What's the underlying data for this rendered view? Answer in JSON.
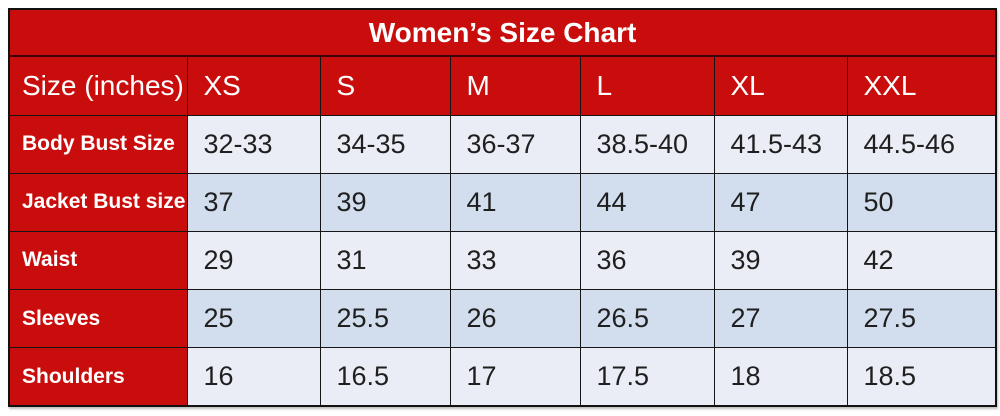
{
  "title": "Women’s Size Chart",
  "colors": {
    "red": "#c90d0d",
    "row_light": "#eaedf6",
    "row_dark": "#d2deee",
    "border": "#151515",
    "text_dark": "#1f1f1f",
    "text_light": "#ffffff"
  },
  "chart_data": {
    "type": "table",
    "title": "Women’s Size Chart",
    "columns": [
      "Size (inches)",
      "XS",
      "S",
      "M",
      "L",
      "XL",
      "XXL"
    ],
    "rows": [
      {
        "label": "Body Bust Size",
        "values": [
          "32-33",
          "34-35",
          "36-37",
          "38.5-40",
          "41.5-43",
          "44.5-46"
        ]
      },
      {
        "label": "Jacket Bust size",
        "values": [
          "37",
          "39",
          "41",
          "44",
          "47",
          "50"
        ]
      },
      {
        "label": "Waist",
        "values": [
          "29",
          "31",
          "33",
          "36",
          "39",
          "42"
        ]
      },
      {
        "label": "Sleeves",
        "values": [
          "25",
          "25.5",
          "26",
          "26.5",
          "27",
          "27.5"
        ]
      },
      {
        "label": "Shoulders",
        "values": [
          "16",
          "16.5",
          "17",
          "17.5",
          "18",
          "18.5"
        ]
      }
    ]
  }
}
